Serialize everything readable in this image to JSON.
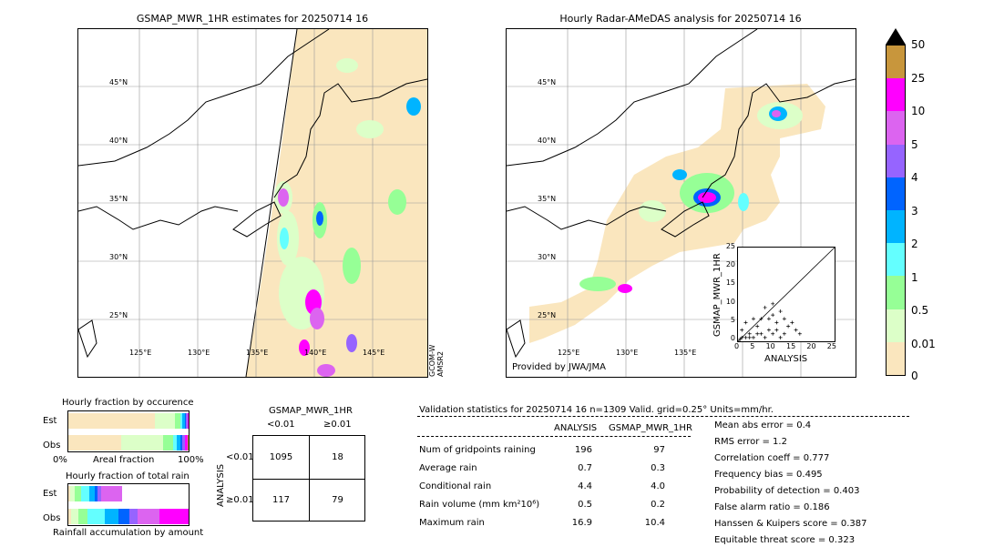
{
  "left_map": {
    "title": "GSMAP_MWR_1HR estimates for 20250714 16",
    "lat_labels": [
      "45°N",
      "40°N",
      "35°N",
      "30°N",
      "25°N"
    ],
    "lon_labels": [
      "125°E",
      "130°E",
      "135°E",
      "140°E",
      "145°E"
    ],
    "sensor_note": "GCOM-W\nAMSR2"
  },
  "right_map": {
    "title": "Hourly Radar-AMeDAS analysis for 20250714 16",
    "lat_labels": [
      "45°N",
      "40°N",
      "35°N",
      "30°N",
      "25°N"
    ],
    "lon_labels": [
      "125°E",
      "130°E",
      "135°E"
    ],
    "credit": "Provided by JWA/JMA",
    "scatter": {
      "ylabel": "GSMAP_MWR_1HR",
      "xlabel": "ANALYSIS",
      "ticks": [
        "0",
        "5",
        "10",
        "15",
        "20",
        "25"
      ]
    }
  },
  "colorbar": {
    "labels": [
      "50",
      "25",
      "10",
      "5",
      "4",
      "3",
      "2",
      "1",
      "0.5",
      "0.01",
      "0"
    ],
    "colors": [
      "#c8963c",
      "#ff00ff",
      "#dc64f0",
      "#9664ff",
      "#0064ff",
      "#00b4ff",
      "#64ffff",
      "#96ff96",
      "#dcffc8",
      "#fae6be"
    ]
  },
  "fraction_occ": {
    "title": "Hourly fraction by occurence",
    "rows": [
      "Est",
      "Obs"
    ],
    "axis_left": "0%",
    "axis_mid": "Areal fraction",
    "axis_right": "100%"
  },
  "fraction_total": {
    "title": "Hourly fraction of total rain",
    "rows": [
      "Est",
      "Obs"
    ],
    "footer": "Rainfall accumulation by amount"
  },
  "contingency": {
    "title": "GSMAP_MWR_1HR",
    "col_lt": "<0.01",
    "col_ge": "≥0.01",
    "ylabel": "ANALYSIS",
    "row_lt": "<0.01",
    "row_ge": "≥0.01",
    "cells": [
      "1095",
      "18",
      "117",
      "79"
    ]
  },
  "validation": {
    "header": "Validation statistics for 20250714 16  n=1309 Valid. grid=0.25° Units=mm/hr.",
    "col_analysis": "ANALYSIS",
    "col_gsmap": "GSMAP_MWR_1HR",
    "rows": [
      {
        "label": "Num of gridpoints raining",
        "a": "196",
        "g": "97"
      },
      {
        "label": "Average rain",
        "a": "0.7",
        "g": "0.3"
      },
      {
        "label": "Conditional rain",
        "a": "4.4",
        "g": "4.0"
      },
      {
        "label": "Rain volume (mm km²10⁶)",
        "a": "0.5",
        "g": "0.2"
      },
      {
        "label": "Maximum rain",
        "a": "16.9",
        "g": "10.4"
      }
    ],
    "scores": [
      "Mean abs error =    0.4",
      "RMS error =    1.2",
      "Correlation coeff =  0.777",
      "Frequency bias =  0.495",
      "Probability of detection =  0.403",
      "False alarm ratio =  0.186",
      "Hanssen & Kuipers score =  0.387",
      "Equitable threat score =  0.323"
    ]
  }
}
